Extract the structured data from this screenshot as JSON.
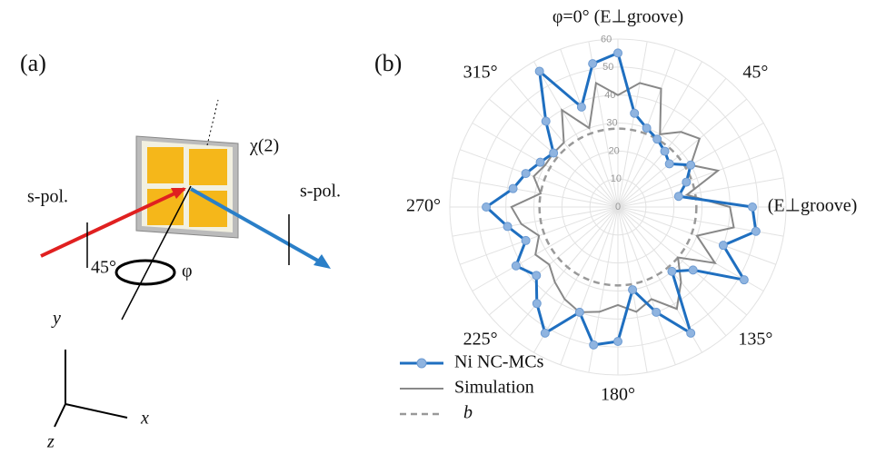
{
  "diagram": {
    "panel_label": "(a)",
    "s_pol_in": "s-pol.",
    "s_pol_out": "s-pol.",
    "angle": "45°",
    "phi": "φ",
    "chi": "χ(2)",
    "axis_y": "y",
    "axis_x": "x",
    "axis_z": "z"
  },
  "chart_data": {
    "type": "polar",
    "panel_label": "(b)",
    "theta": [
      0,
      10,
      20,
      30,
      40,
      50,
      60,
      70,
      80,
      90,
      100,
      110,
      120,
      130,
      140,
      150,
      160,
      170,
      180,
      190,
      200,
      210,
      220,
      230,
      240,
      250,
      260,
      270,
      280,
      290,
      300,
      310,
      320,
      330,
      340,
      350
    ],
    "series": [
      {
        "name": "Ni NC-MCs",
        "color": "#1f6fc0",
        "marker_color": "#8fb4e0",
        "values": [
          55,
          34,
          30,
          28,
          26,
          24,
          30,
          26,
          22,
          48,
          50,
          40,
          52,
          35,
          30,
          52,
          40,
          30,
          48,
          50,
          40,
          52,
          45,
          38,
          42,
          35,
          40,
          47,
          38,
          35,
          32,
          30,
          40,
          56,
          38,
          52
        ]
      },
      {
        "name": "Simulation",
        "color": "#888888",
        "values": [
          40,
          45,
          45,
          30,
          35,
          38,
          30,
          38,
          25,
          40,
          42,
          30,
          40,
          28,
          35,
          42,
          35,
          38,
          35,
          38,
          40,
          38,
          35,
          32,
          34,
          30,
          35,
          38,
          28,
          32,
          30,
          30,
          30,
          40,
          30,
          45
        ]
      }
    ],
    "reference": {
      "name": "b",
      "value": 28,
      "color": "#999999"
    },
    "rlim": [
      0,
      60
    ],
    "rticks": [
      0,
      10,
      20,
      30,
      40,
      50,
      60
    ],
    "thetaticks": [
      {
        "value": 0,
        "label": "φ=0° (E⊥groove)"
      },
      {
        "value": 45,
        "label": "45°"
      },
      {
        "value": 90,
        "label": "(E⊥groove)"
      },
      {
        "value": 135,
        "label": "135°"
      },
      {
        "value": 180,
        "label": "180°"
      },
      {
        "value": 225,
        "label": "225°"
      },
      {
        "value": 270,
        "label": "270°"
      },
      {
        "value": 315,
        "label": "315°"
      }
    ],
    "grid": true
  }
}
